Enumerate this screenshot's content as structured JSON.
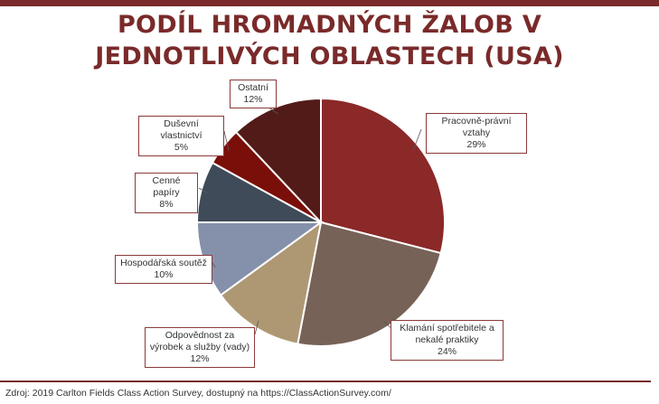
{
  "title_line1": "PODÍL HROMADNÝCH ŽALOB V",
  "title_line2": "JEDNOTLIVÝCH OBLASTECH (USA)",
  "source": "Zdroj: 2019 Carlton Fields Class Action Survey, dostupný na https://ClassActionSurvey.com/",
  "chart_data": {
    "type": "pie",
    "title": "PODÍL HROMADNÝCH ŽALOB V JEDNOTLIVÝCH OBLASTECH (USA)",
    "slices": [
      {
        "label": "Pracovně-právní vztahy",
        "value": 29,
        "value_label": "29%",
        "color": "#8b2828"
      },
      {
        "label": "Klamání spotřebitele a nekalé praktiky",
        "value": 24,
        "value_label": "24%",
        "color": "#776257"
      },
      {
        "label": "Odpovědnost za výrobek a služby (vady)",
        "value": 12,
        "value_label": "12%",
        "color": "#ae9874"
      },
      {
        "label": "Hospodářská soutěž",
        "value": 10,
        "value_label": "10%",
        "color": "#8591ab"
      },
      {
        "label": "Cenné papíry",
        "value": 8,
        "value_label": "8%",
        "color": "#3f4b59"
      },
      {
        "label": "Duševní vlastnictví",
        "value": 5,
        "value_label": "5%",
        "color": "#7a0f0a"
      },
      {
        "label": "Ostatní",
        "value": 12,
        "value_label": "12%",
        "color": "#531b18"
      }
    ],
    "start_angle": "12 o'clock",
    "direction": "clockwise",
    "legend": "none"
  }
}
